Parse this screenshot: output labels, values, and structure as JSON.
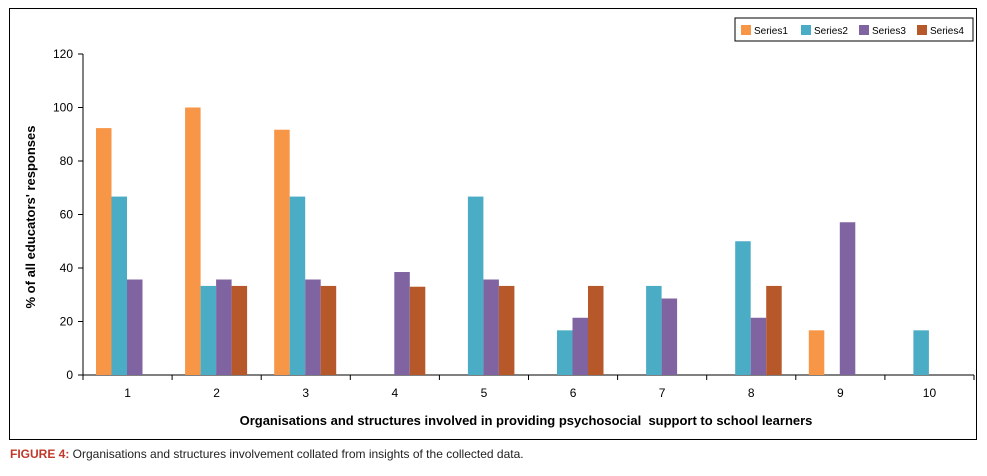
{
  "chart_data": {
    "type": "bar",
    "xlabel": "Organisations and structures involved in providing psychosocial  support to school learners",
    "ylabel": "% of all educators' responses",
    "ylim": [
      0,
      120
    ],
    "yticks": [
      0,
      20,
      40,
      60,
      80,
      100,
      120
    ],
    "categories": [
      "1",
      "2",
      "3",
      "4",
      "5",
      "6",
      "7",
      "8",
      "9",
      "10"
    ],
    "legend_position": "top-right",
    "series": [
      {
        "name": "Series1",
        "color": "#F79646",
        "values": [
          92.3,
          100,
          91.7,
          0,
          0,
          0,
          0,
          0,
          16.7,
          0
        ]
      },
      {
        "name": "Series2",
        "color": "#4BACC6",
        "values": [
          66.7,
          33.3,
          66.7,
          0,
          66.7,
          16.7,
          33.3,
          50,
          0,
          16.7
        ]
      },
      {
        "name": "Series3",
        "color": "#8064A2",
        "values": [
          35.7,
          35.7,
          35.7,
          38.5,
          35.7,
          21.4,
          28.6,
          21.4,
          57.1,
          0
        ]
      },
      {
        "name": "Series4",
        "color": "#B7582B",
        "values": [
          0,
          33.3,
          33.3,
          33,
          33.3,
          33.3,
          0,
          33.3,
          0,
          0
        ]
      }
    ]
  },
  "caption": {
    "label": "FIGURE 4:",
    "text": " Organisations and structures involvement collated from insights of the collected data."
  }
}
